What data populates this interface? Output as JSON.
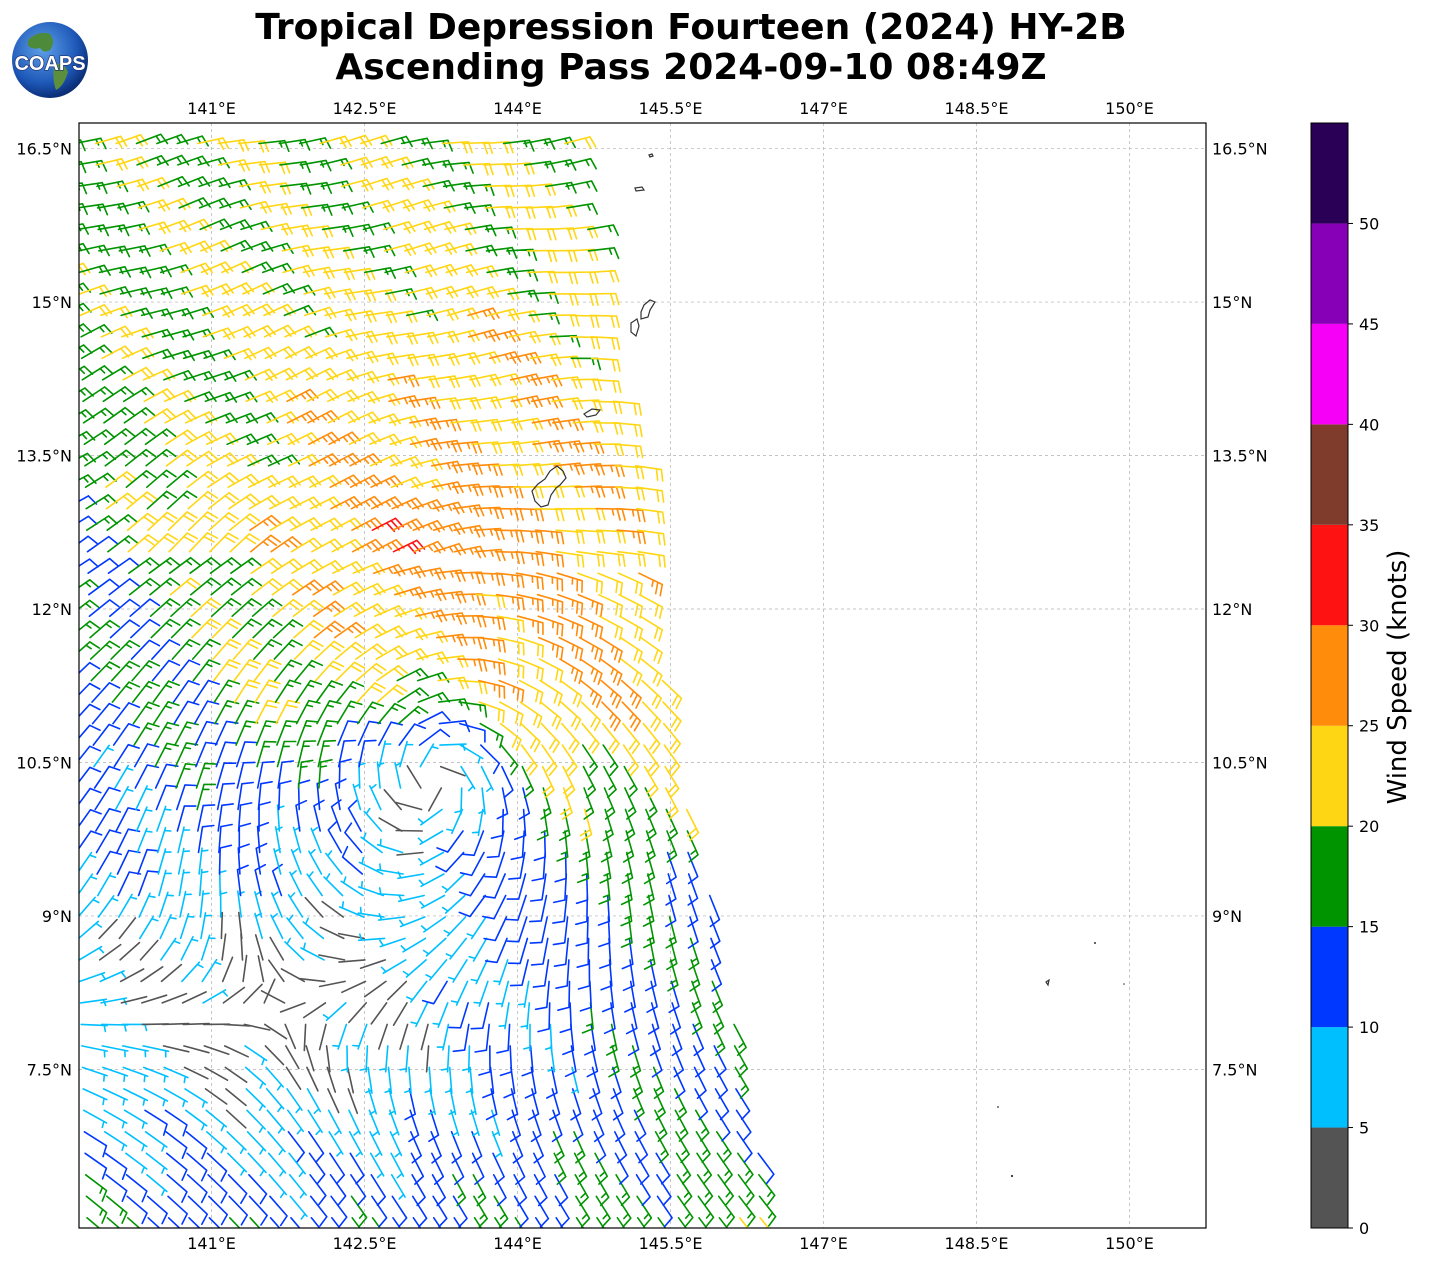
{
  "logo": {
    "text": "COAPS",
    "icon": "globe-icon"
  },
  "title": {
    "line1": "Tropical Depression Fourteen (2024) HY-2B",
    "line2": "Ascending Pass 2024-09-10 08:49Z"
  },
  "chart_data": {
    "type": "wind-barb-map",
    "xlim": [
      139.7,
      150.75
    ],
    "ylim": [
      5.95,
      16.75
    ],
    "x_ticks": [
      {
        "value": 141.0,
        "label": "141°E"
      },
      {
        "value": 142.5,
        "label": "142.5°E"
      },
      {
        "value": 144.0,
        "label": "144°E"
      },
      {
        "value": 145.5,
        "label": "145.5°E"
      },
      {
        "value": 147.0,
        "label": "147°E"
      },
      {
        "value": 148.5,
        "label": "148.5°E"
      },
      {
        "value": 150.0,
        "label": "150°E"
      }
    ],
    "y_ticks": [
      {
        "value": 7.5,
        "label": "7.5°N"
      },
      {
        "value": 9.0,
        "label": "9°N"
      },
      {
        "value": 10.5,
        "label": "10.5°N"
      },
      {
        "value": 12.0,
        "label": "12°N"
      },
      {
        "value": 13.5,
        "label": "13.5°N"
      },
      {
        "value": 15.0,
        "label": "15°N"
      },
      {
        "value": 16.5,
        "label": "16.5°N"
      }
    ],
    "grid": true,
    "swath": {
      "west_lon": 139.7,
      "east_lon_at_lat": [
        [
          16.75,
          144.55
        ],
        [
          14.0,
          144.95
        ],
        [
          13.0,
          145.3
        ],
        [
          11.0,
          145.45
        ],
        [
          9.5,
          145.85
        ],
        [
          7.5,
          146.2
        ],
        [
          5.95,
          146.55
        ]
      ]
    },
    "circulation_center": {
      "lon": 143.3,
      "lat": 10.75
    },
    "colorbar": {
      "label": "Wind Speed (knots)",
      "range": [
        0,
        55
      ],
      "tick_values": [
        0,
        5,
        10,
        15,
        20,
        25,
        30,
        35,
        40,
        45,
        50
      ],
      "tick_labels": [
        "0",
        "5",
        "10",
        "15",
        "20",
        "25",
        "30",
        "35",
        "40",
        "45",
        "50"
      ],
      "bins": [
        {
          "min": 0,
          "max": 5,
          "color": "#545454"
        },
        {
          "min": 5,
          "max": 10,
          "color": "#00bfff"
        },
        {
          "min": 10,
          "max": 15,
          "color": "#0038ff"
        },
        {
          "min": 15,
          "max": 20,
          "color": "#009400"
        },
        {
          "min": 20,
          "max": 25,
          "color": "#ffd614"
        },
        {
          "min": 25,
          "max": 30,
          "color": "#ff8c0a"
        },
        {
          "min": 30,
          "max": 35,
          "color": "#ff1212"
        },
        {
          "min": 35,
          "max": 40,
          "color": "#7f3b2b"
        },
        {
          "min": 40,
          "max": 45,
          "color": "#f700f7"
        },
        {
          "min": 45,
          "max": 50,
          "color": "#8700b8"
        },
        {
          "min": 50,
          "max": 55,
          "color": "#2a0057"
        }
      ]
    }
  }
}
